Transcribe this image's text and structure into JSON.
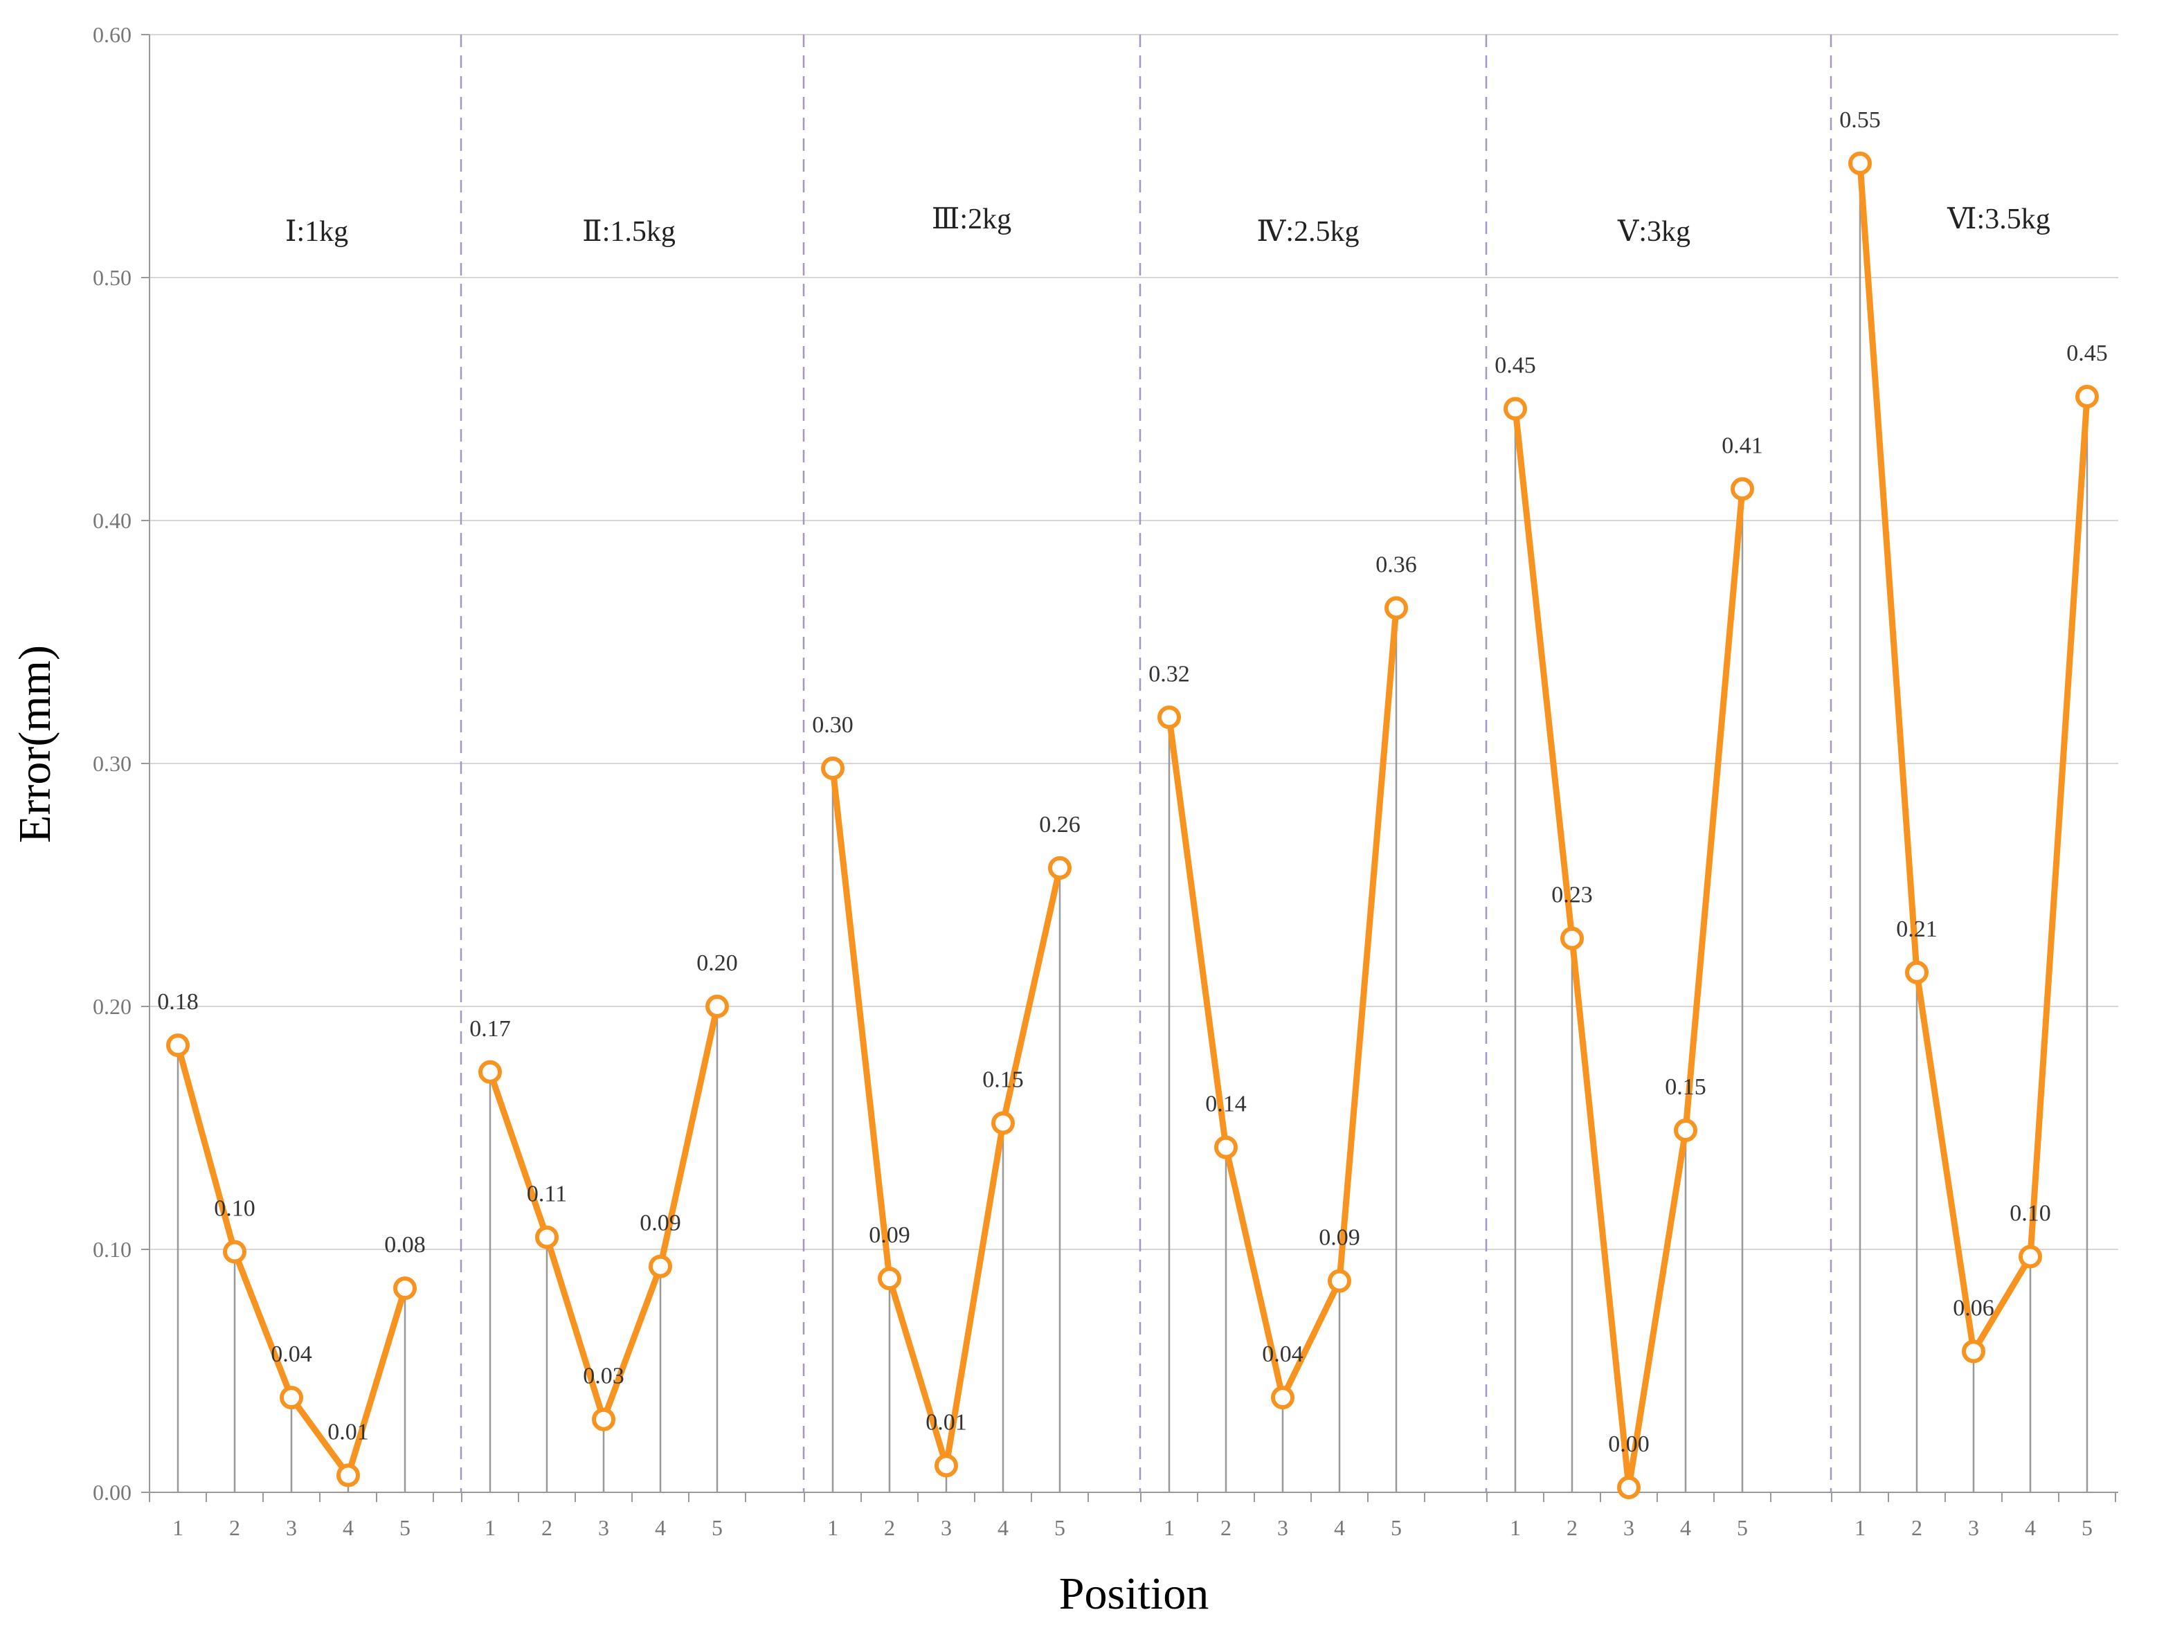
{
  "chart_data": {
    "type": "line",
    "xlabel": "Position",
    "ylabel": "Error(mm)",
    "ylim": [
      0,
      0.6
    ],
    "yticks": [
      "0.00",
      "0.10",
      "0.20",
      "0.30",
      "0.40",
      "0.50",
      "0.60"
    ],
    "grid": "horizontal",
    "categories": [
      "1",
      "2",
      "3",
      "4",
      "5"
    ],
    "groups": [
      {
        "label": "Ⅰ:1kg",
        "values": [
          0.184,
          0.099,
          0.039,
          0.007,
          0.084
        ],
        "labels": [
          "0.18",
          "0.10",
          "0.04",
          "0.01",
          "0.08"
        ]
      },
      {
        "label": "Ⅱ:1.5kg",
        "values": [
          0.173,
          0.105,
          0.03,
          0.093,
          0.2
        ],
        "labels": [
          "0.17",
          "0.11",
          "0.03",
          "0.09",
          "0.20"
        ]
      },
      {
        "label": "Ⅲ:2kg",
        "values": [
          0.298,
          0.088,
          0.011,
          0.152,
          0.257
        ],
        "labels": [
          "0.30",
          "0.09",
          "0.01",
          "0.15",
          "0.26"
        ]
      },
      {
        "label": "Ⅳ:2.5kg",
        "values": [
          0.319,
          0.142,
          0.039,
          0.087,
          0.364
        ],
        "labels": [
          "0.32",
          "0.14",
          "0.04",
          "0.09",
          "0.36"
        ]
      },
      {
        "label": "Ⅴ:3kg",
        "values": [
          0.446,
          0.228,
          0.002,
          0.149,
          0.413
        ],
        "labels": [
          "0.45",
          "0.23",
          "0.00",
          "0.15",
          "0.41"
        ]
      },
      {
        "label": "Ⅵ:3.5kg",
        "values": [
          0.547,
          0.214,
          0.058,
          0.097,
          0.451
        ],
        "labels": [
          "0.55",
          "0.21",
          "0.06",
          "0.10",
          "0.45"
        ]
      }
    ]
  },
  "colors": {
    "line": "#f7931e",
    "stem": "#999999",
    "grid": "#d6d6d6",
    "divider": "#a696c8",
    "axis": "#999999"
  }
}
